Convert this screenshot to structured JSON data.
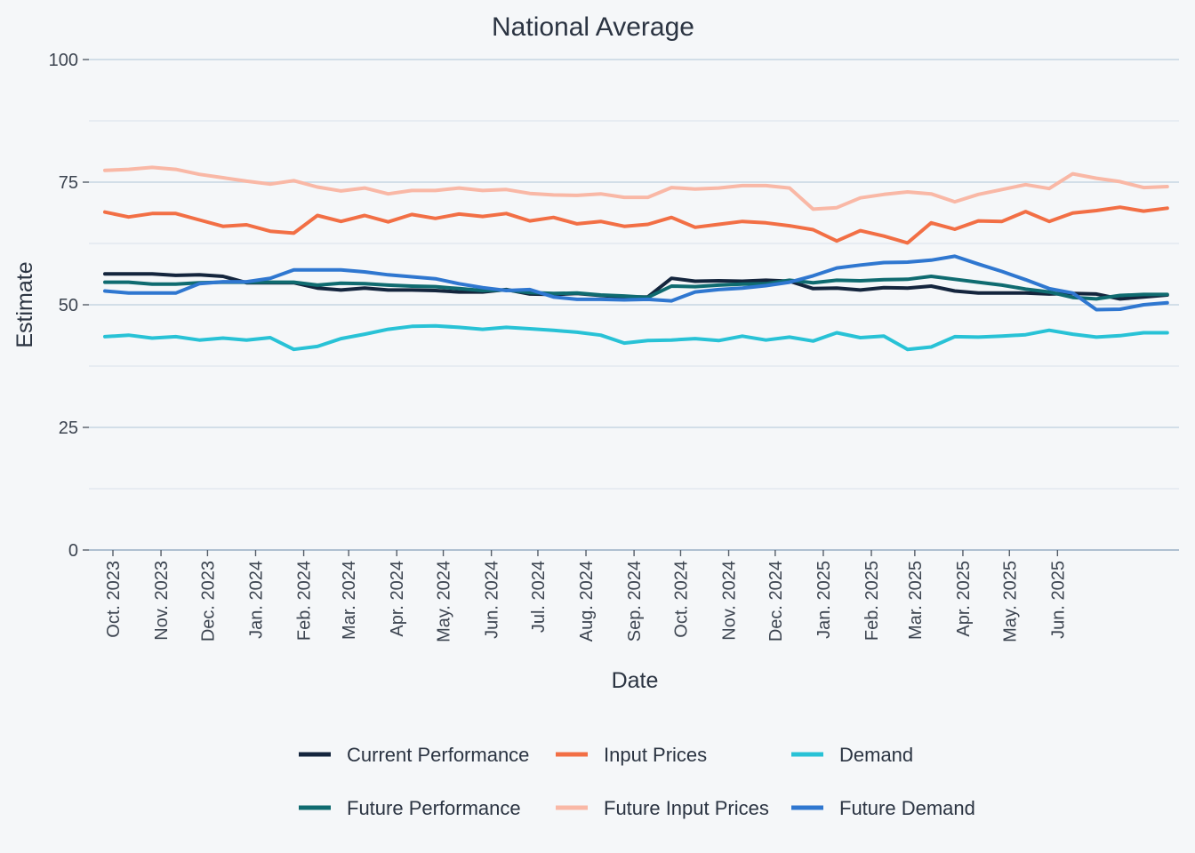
{
  "chart_data": {
    "type": "line",
    "title": "National Average",
    "xlabel": "Date",
    "ylabel": "Estimate",
    "ylim": [
      0,
      100
    ],
    "yticks": [
      0,
      25,
      50,
      75,
      100
    ],
    "x_start": "2023-10-01",
    "points_per_month": 2,
    "tick_labels": [
      "Oct. 2023",
      "Nov. 2023",
      "Dec. 2023",
      "Jan. 2024",
      "Feb. 2024",
      "Mar. 2024",
      "Apr. 2024",
      "May. 2024",
      "Jun. 2024",
      "Jul. 2024",
      "Aug. 2024",
      "Sep. 2024",
      "Oct. 2024",
      "Nov. 2024",
      "Dec. 2024",
      "Jan. 2025",
      "Feb. 2025",
      "Mar. 2025",
      "Apr. 2025",
      "May. 2025",
      "Jun. 2025"
    ],
    "legend_position": "bottom",
    "series": [
      {
        "name": "Current Performance",
        "color": "#14253d",
        "values": [
          56.3,
          56.3,
          56.3,
          56,
          56.1,
          55.8,
          54.5,
          54.5,
          54.5,
          53.4,
          53,
          53.4,
          53,
          53,
          52.9,
          52.6,
          52.6,
          53.1,
          52.2,
          52.1,
          52.3,
          51.9,
          51.6,
          51.6,
          55.4,
          54.8,
          54.9,
          54.8,
          55,
          54.8,
          53.3,
          53.4,
          53,
          53.5,
          53.4,
          53.8,
          52.8,
          52.4,
          52.4,
          52.4,
          52.2,
          52.3,
          52.2,
          51.2,
          51.6,
          52
        ]
      },
      {
        "name": "Input Prices",
        "color": "#f26f45",
        "values": [
          68.9,
          67.9,
          68.6,
          68.6,
          67.3,
          66,
          66.3,
          65,
          64.6,
          68.2,
          67,
          68.2,
          66.9,
          68.4,
          67.6,
          68.5,
          68,
          68.6,
          67.1,
          67.8,
          66.5,
          67,
          66,
          66.4,
          67.8,
          65.8,
          66.4,
          67,
          66.7,
          66.1,
          65.3,
          63,
          65.1,
          64,
          62.6,
          66.7,
          65.4,
          67.1,
          67,
          69,
          67,
          68.7,
          69.2,
          69.9,
          69.1,
          69.7
        ]
      },
      {
        "name": "Demand",
        "color": "#28c2d6",
        "values": [
          43.5,
          43.8,
          43.2,
          43.5,
          42.8,
          43.2,
          42.8,
          43.3,
          40.9,
          41.5,
          43.1,
          44,
          45,
          45.6,
          45.7,
          45.4,
          45,
          45.4,
          45.1,
          44.8,
          44.4,
          43.8,
          42.2,
          42.7,
          42.8,
          43.1,
          42.7,
          43.6,
          42.8,
          43.4,
          42.6,
          44.3,
          43.3,
          43.6,
          40.9,
          41.4,
          43.5,
          43.4,
          43.6,
          43.9,
          44.8,
          44,
          43.4,
          43.7,
          44.3,
          44.3
        ]
      },
      {
        "name": "Future Performance",
        "color": "#0f6b70",
        "values": [
          54.6,
          54.6,
          54.2,
          54.2,
          54.5,
          54.6,
          54.6,
          54.6,
          54.6,
          54,
          54.4,
          54.3,
          54,
          53.8,
          53.7,
          53.3,
          52.9,
          53,
          52.5,
          52.3,
          52.4,
          52,
          51.8,
          51.5,
          53.8,
          53.7,
          54,
          54.2,
          54.3,
          55,
          54.5,
          55,
          54.9,
          55.1,
          55.2,
          55.8,
          55.2,
          54.6,
          54,
          53.2,
          52.6,
          51.5,
          51.2,
          51.9,
          52.1,
          52.1
        ]
      },
      {
        "name": "Future Input Prices",
        "color": "#f9b8a6",
        "values": [
          77.4,
          77.6,
          78,
          77.6,
          76.6,
          75.9,
          75.2,
          74.6,
          75.3,
          74,
          73.2,
          73.8,
          72.6,
          73.3,
          73.3,
          73.8,
          73.3,
          73.5,
          72.7,
          72.4,
          72.3,
          72.6,
          71.9,
          71.9,
          73.9,
          73.6,
          73.8,
          74.3,
          74.3,
          73.8,
          69.5,
          69.8,
          71.8,
          72.5,
          73,
          72.6,
          71,
          72.5,
          73.5,
          74.5,
          73.7,
          76.7,
          75.8,
          75.1,
          73.9,
          74.1
        ]
      },
      {
        "name": "Future Demand",
        "color": "#2f77d0",
        "values": [
          52.8,
          52.4,
          52.4,
          52.4,
          54.3,
          54.7,
          54.7,
          55.4,
          57.1,
          57.1,
          57.1,
          56.7,
          56.1,
          55.7,
          55.3,
          54.3,
          53.5,
          52.9,
          53.1,
          51.6,
          51.1,
          51.1,
          51,
          51.1,
          50.8,
          52.6,
          53.1,
          53.4,
          53.9,
          54.6,
          55.9,
          57.5,
          58.1,
          58.6,
          58.7,
          59.1,
          59.9,
          58.3,
          56.8,
          55.1,
          53.3,
          52.4,
          49,
          49.1,
          50,
          50.4
        ]
      }
    ]
  }
}
